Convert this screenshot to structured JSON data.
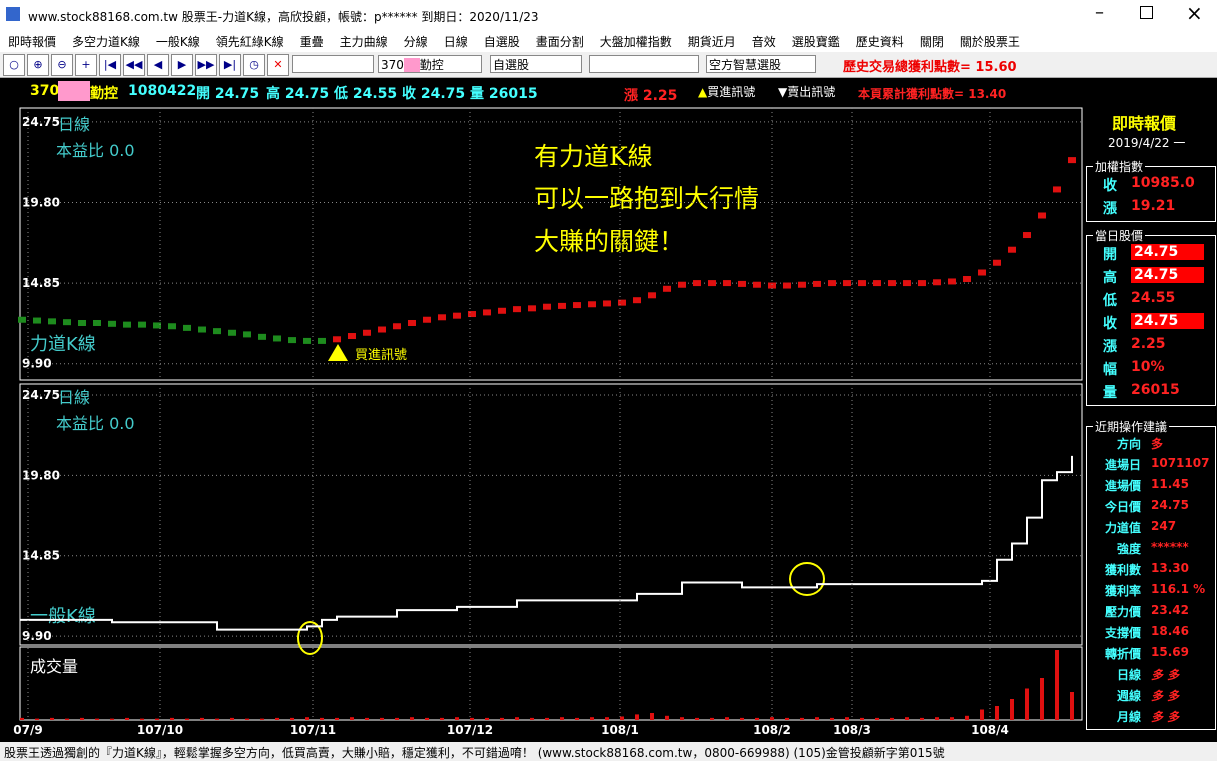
{
  "window": {
    "title": "www.stock88168.com.tw 股票王-力道K線，高欣投顧，帳號：p****** 到期日：2020/11/23"
  },
  "menu": [
    "即時報價",
    "多空力道K線",
    "一般K線",
    "領先紅綠K線",
    "重疊",
    "主力曲線",
    "分線",
    "日線",
    "自選股",
    "畫面分割",
    "大盤加權指數",
    "期貨近月",
    "音效",
    "選股寶鑑",
    "歷史資料",
    "關閉",
    "關於股票王"
  ],
  "toolbar": {
    "stock": "370",
    "stock_name": "勤控",
    "list": "自選股",
    "mode": "空方智慧選股",
    "total": "歷史交易總獲利點數= 15.60"
  },
  "infobar": {
    "code": "370",
    "name": "勤控",
    "date": "1080422",
    "open": "開 24.75",
    "high": "高 24.75",
    "low": "低 24.55",
    "close": "收 24.75",
    "volume": "量 26015",
    "change": "漲 2.25",
    "buy": "買進訊號",
    "sell": "賣出訊號",
    "page_total": "本頁累計獲利點數= 13.40"
  },
  "upper": {
    "period": "日線",
    "pe": "本益比 0.0",
    "slogan": [
      "有力道K線",
      "可以一路抱到大行情",
      "大賺的關鍵！"
    ],
    "name": "力道K線",
    "signal": "買進訊號",
    "ylim": [
      8.9,
      25.6
    ],
    "yticks": [
      {
        "value": 24.75,
        "label": "24.75"
      },
      {
        "value": 19.8,
        "label": "19.80"
      },
      {
        "value": 14.85,
        "label": "14.85"
      },
      {
        "value": 9.9,
        "label": "9.90"
      }
    ],
    "down_color": "#1e8c1e",
    "up_color": "#e01010",
    "values": [
      12.6,
      12.55,
      12.5,
      12.45,
      12.4,
      12.4,
      12.35,
      12.3,
      12.3,
      12.25,
      12.2,
      12.1,
      12.0,
      11.9,
      11.8,
      11.7,
      11.55,
      11.45,
      11.35,
      11.3,
      11.3,
      11.4,
      11.6,
      11.8,
      12.0,
      12.2,
      12.4,
      12.6,
      12.75,
      12.85,
      12.95,
      13.05,
      13.15,
      13.25,
      13.3,
      13.4,
      13.45,
      13.5,
      13.55,
      13.6,
      13.65,
      13.8,
      14.1,
      14.5,
      14.75,
      14.85,
      14.85,
      14.85,
      14.8,
      14.75,
      14.7,
      14.7,
      14.75,
      14.8,
      14.85,
      14.85,
      14.85,
      14.85,
      14.85,
      14.85,
      14.85,
      14.9,
      14.95,
      15.1,
      15.5,
      16.1,
      16.9,
      17.8,
      19.0,
      20.6,
      22.4
    ]
  },
  "lower": {
    "period": "日線",
    "pe": "本益比 0.0",
    "name": "一般K線",
    "ylim": [
      9.35,
      25.43
    ],
    "yticks": [
      {
        "value": 24.75,
        "label": "24.75"
      },
      {
        "value": 19.8,
        "label": "19.80"
      },
      {
        "value": 14.85,
        "label": "14.85"
      },
      {
        "value": 9.9,
        "label": "9.90"
      }
    ],
    "values": [
      10.9,
      10.9,
      10.9,
      10.9,
      10.9,
      10.9,
      10.75,
      10.75,
      10.75,
      10.75,
      10.75,
      10.75,
      10.75,
      10.3,
      10.3,
      10.3,
      10.3,
      10.3,
      10.3,
      10.5,
      10.9,
      11.1,
      11.1,
      11.1,
      11.1,
      11.5,
      11.5,
      11.5,
      11.5,
      11.7,
      11.7,
      11.7,
      11.7,
      12.1,
      12.1,
      12.1,
      12.1,
      12.1,
      12.1,
      12.1,
      12.1,
      12.5,
      12.5,
      12.5,
      13.2,
      13.2,
      13.2,
      13.2,
      12.9,
      12.9,
      12.9,
      12.9,
      12.9,
      13.1,
      13.1,
      13.1,
      13.1,
      13.1,
      13.1,
      13.1,
      13.1,
      13.1,
      13.1,
      13.1,
      13.3,
      14.6,
      15.6,
      17.2,
      19.5,
      20.0,
      21.0
    ]
  },
  "volume": {
    "name": "成交量",
    "color": "#e01010",
    "values": [
      3,
      2,
      3,
      2,
      3,
      2,
      2,
      3,
      2,
      2,
      3,
      2,
      3,
      2,
      3,
      2,
      2,
      3,
      3,
      4,
      3,
      3,
      4,
      3,
      3,
      3,
      4,
      3,
      3,
      4,
      3,
      3,
      3,
      4,
      3,
      3,
      4,
      3,
      4,
      4,
      5,
      8,
      10,
      6,
      4,
      3,
      3,
      4,
      3,
      3,
      4,
      3,
      3,
      4,
      3,
      4,
      3,
      3,
      3,
      4,
      3,
      4,
      4,
      6,
      15,
      20,
      30,
      45,
      60,
      100,
      40
    ]
  },
  "x_labels": [
    "07/9",
    "107/10",
    "107/11",
    "107/12",
    "108/1",
    "108/2",
    "108/3",
    "108/4"
  ],
  "panel": {
    "title": "即時報價",
    "date": "2019/4/22 一",
    "index_title": "加權指數",
    "index": [
      [
        "收",
        "10985.0"
      ],
      [
        "漲",
        "19.21"
      ]
    ],
    "day_title": "當日股價",
    "day": [
      [
        "開",
        "24.75"
      ],
      [
        "高",
        "24.75"
      ],
      [
        "低",
        "24.55"
      ],
      [
        "收",
        "24.75"
      ],
      [
        "漲",
        "2.25"
      ],
      [
        "幅",
        "10%"
      ],
      [
        "量",
        "26015"
      ]
    ],
    "advice_title": "近期操作建議",
    "advice": [
      [
        "方向",
        "多"
      ],
      [
        "進場日",
        "1071107"
      ],
      [
        "進場價",
        "11.45"
      ],
      [
        "今日價",
        "24.75"
      ],
      [
        "力道值",
        "247"
      ],
      [
        "強度",
        "******"
      ],
      [
        "獲利數",
        "13.30"
      ],
      [
        "獲利率",
        "116.1 %"
      ],
      [
        "壓力價",
        "23.42"
      ],
      [
        "支撐價",
        "18.46"
      ],
      [
        "轉折價",
        "15.69"
      ],
      [
        "日線",
        "多 多"
      ],
      [
        "週線",
        "多 多"
      ],
      [
        "月線",
        "多 多"
      ]
    ]
  },
  "status": "股票王透過獨創的『力道K線』，輕鬆掌握多空方向，低買高賣，大賺小賠，穩定獲利，不可錯過唷！ (www.stock88168.com.tw，0800-669988) (105)金管投顧新字第015號"
}
